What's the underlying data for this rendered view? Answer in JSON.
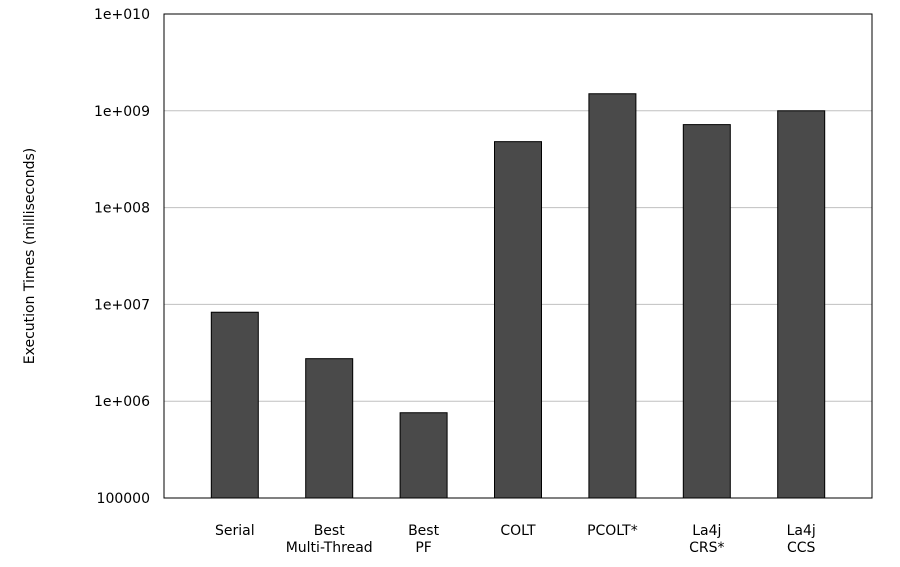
{
  "chart_data": {
    "type": "bar",
    "title": "",
    "xlabel": "",
    "ylabel": "Execution Times (milliseconds)",
    "yscale": "log",
    "ylim": [
      100000,
      10000000000
    ],
    "yticks": [
      100000,
      1000000,
      10000000,
      100000000,
      1000000000,
      10000000000
    ],
    "ytick_labels": [
      "100000",
      "1e+006",
      "1e+007",
      "1e+008",
      "1e+009",
      "1e+010"
    ],
    "grid": "horizontal",
    "legend": "none",
    "categories": [
      [
        "Serial"
      ],
      [
        "Best",
        "Multi-Thread"
      ],
      [
        "Best",
        "PF"
      ],
      [
        "COLT"
      ],
      [
        "PCOLT*"
      ],
      [
        "La4j",
        "CRS*"
      ],
      [
        "La4j",
        "CCS"
      ]
    ],
    "values": [
      8300000,
      2750000,
      760000,
      480000000,
      1500000000,
      720000000,
      1000000000
    ],
    "bar_color": "#4a4a4a",
    "bar_edge_color": "#000000",
    "grid_color": "#c0c0c0"
  }
}
